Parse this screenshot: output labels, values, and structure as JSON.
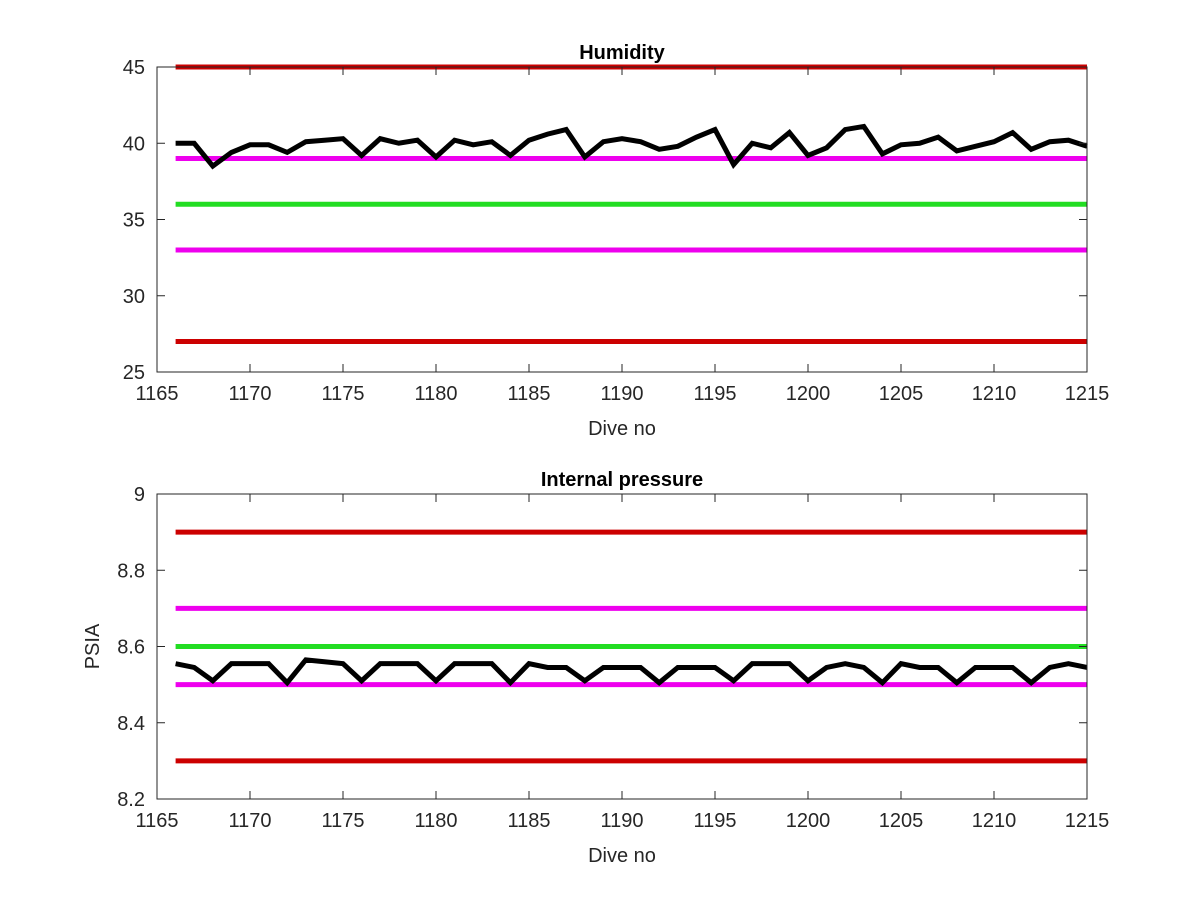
{
  "chart_data": [
    {
      "type": "line",
      "title": "Humidity",
      "xlabel": "Dive no",
      "ylabel": "",
      "xlim": [
        1165,
        1215
      ],
      "ylim": [
        25,
        45
      ],
      "xticks": [
        1165,
        1170,
        1175,
        1180,
        1185,
        1190,
        1195,
        1200,
        1205,
        1210,
        1215
      ],
      "yticks": [
        25,
        30,
        35,
        40,
        45
      ],
      "grid": false,
      "reference_lines": [
        {
          "y": 45,
          "color": "#cc0000"
        },
        {
          "y": 39,
          "color": "#ee00ee"
        },
        {
          "y": 36,
          "color": "#22dd22"
        },
        {
          "y": 33,
          "color": "#ee00ee"
        },
        {
          "y": 27,
          "color": "#cc0000"
        }
      ],
      "series": [
        {
          "color": "#000000",
          "x": [
            1166,
            1167,
            1168,
            1169,
            1170,
            1171,
            1172,
            1173,
            1174,
            1175,
            1176,
            1177,
            1178,
            1179,
            1180,
            1181,
            1182,
            1183,
            1184,
            1185,
            1186,
            1187,
            1188,
            1189,
            1190,
            1191,
            1192,
            1193,
            1194,
            1195,
            1196,
            1197,
            1198,
            1199,
            1200,
            1201,
            1202,
            1203,
            1204,
            1205,
            1206,
            1207,
            1208,
            1209,
            1210,
            1211,
            1212,
            1213,
            1214,
            1215
          ],
          "values": [
            40.0,
            40.0,
            38.5,
            39.4,
            39.9,
            39.9,
            39.4,
            40.1,
            40.2,
            40.3,
            39.2,
            40.3,
            40.0,
            40.2,
            39.1,
            40.2,
            39.9,
            40.1,
            39.2,
            40.2,
            40.6,
            40.9,
            39.1,
            40.1,
            40.3,
            40.1,
            39.6,
            39.8,
            40.4,
            40.9,
            38.6,
            40.0,
            39.7,
            40.7,
            39.2,
            39.7,
            40.9,
            41.1,
            39.3,
            39.9,
            40.0,
            40.4,
            39.5,
            39.8,
            40.1,
            40.7,
            39.6,
            40.1,
            40.2,
            39.8
          ]
        }
      ]
    },
    {
      "type": "line",
      "title": "Internal pressure",
      "xlabel": "Dive no",
      "ylabel": "PSIA",
      "xlim": [
        1165,
        1215
      ],
      "ylim": [
        8.2,
        9
      ],
      "xticks": [
        1165,
        1170,
        1175,
        1180,
        1185,
        1190,
        1195,
        1200,
        1205,
        1210,
        1215
      ],
      "yticks": [
        8.2,
        8.4,
        8.6,
        8.8,
        9
      ],
      "ytick_labels": [
        "8.2",
        "8.4",
        "8.6",
        "8.8",
        "9"
      ],
      "grid": false,
      "reference_lines": [
        {
          "y": 8.9,
          "color": "#cc0000"
        },
        {
          "y": 8.7,
          "color": "#ee00ee"
        },
        {
          "y": 8.6,
          "color": "#22dd22"
        },
        {
          "y": 8.5,
          "color": "#ee00ee"
        },
        {
          "y": 8.3,
          "color": "#cc0000"
        }
      ],
      "series": [
        {
          "color": "#000000",
          "x": [
            1166,
            1167,
            1168,
            1169,
            1170,
            1171,
            1172,
            1173,
            1174,
            1175,
            1176,
            1177,
            1178,
            1179,
            1180,
            1181,
            1182,
            1183,
            1184,
            1185,
            1186,
            1187,
            1188,
            1189,
            1190,
            1191,
            1192,
            1193,
            1194,
            1195,
            1196,
            1197,
            1198,
            1199,
            1200,
            1201,
            1202,
            1203,
            1204,
            1205,
            1206,
            1207,
            1208,
            1209,
            1210,
            1211,
            1212,
            1213,
            1214,
            1215
          ],
          "values": [
            8.555,
            8.545,
            8.51,
            8.555,
            8.555,
            8.555,
            8.505,
            8.565,
            8.56,
            8.555,
            8.51,
            8.555,
            8.555,
            8.555,
            8.51,
            8.555,
            8.555,
            8.555,
            8.505,
            8.555,
            8.545,
            8.545,
            8.51,
            8.545,
            8.545,
            8.545,
            8.505,
            8.545,
            8.545,
            8.545,
            8.51,
            8.555,
            8.555,
            8.555,
            8.51,
            8.545,
            8.555,
            8.545,
            8.505,
            8.555,
            8.545,
            8.545,
            8.505,
            8.545,
            8.545,
            8.545,
            8.505,
            8.545,
            8.555,
            8.545
          ]
        }
      ]
    }
  ]
}
